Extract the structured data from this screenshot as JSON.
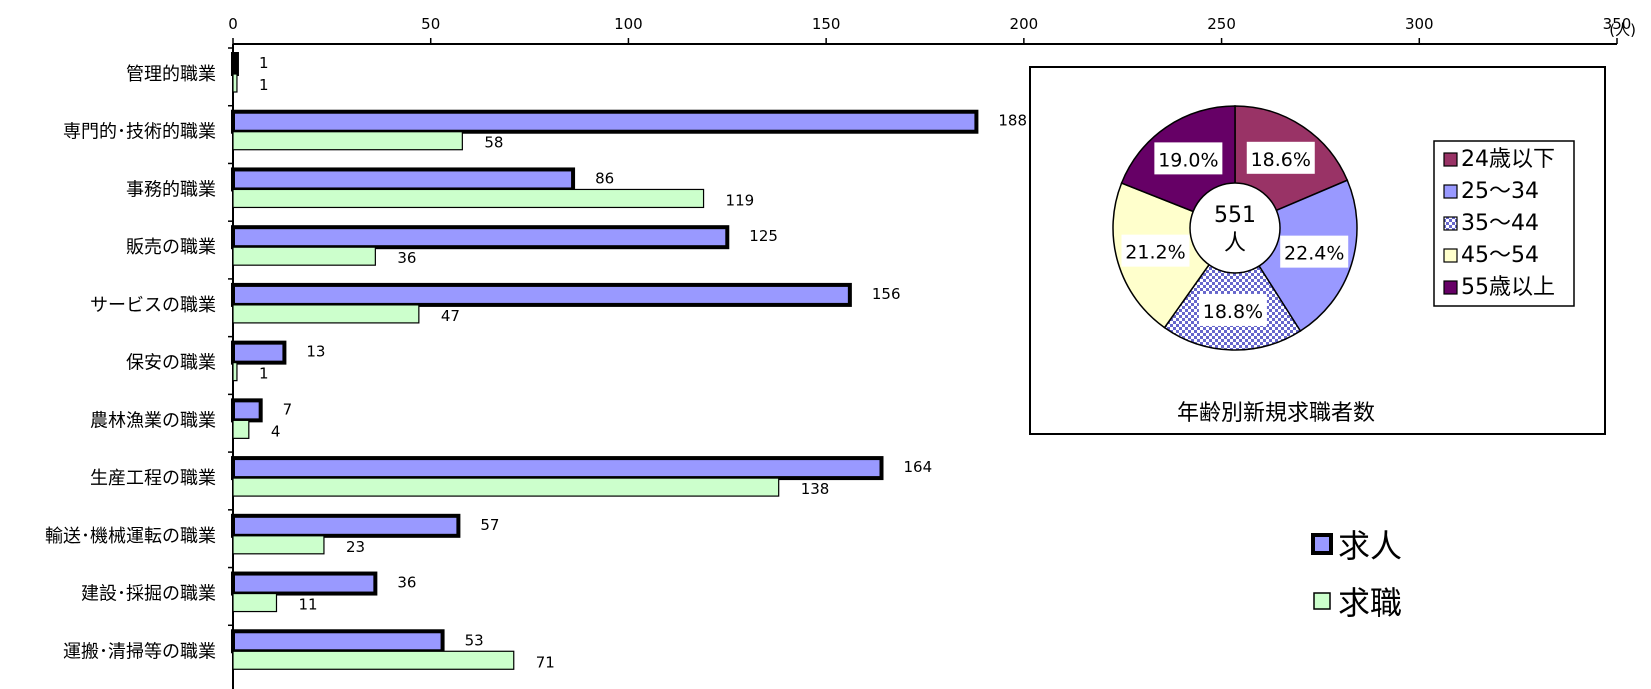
{
  "chart_data": [
    {
      "type": "bar",
      "orientation": "horizontal",
      "unit": "(人)",
      "xlim": [
        0,
        350
      ],
      "x_ticks": [
        "0",
        "50",
        "100",
        "150",
        "200",
        "250",
        "300",
        "350"
      ],
      "categories": [
        "管理的職業",
        "専門的･技術的職業",
        "事務的職業",
        "販売の職業",
        "サービスの職業",
        "保安の職業",
        "農林漁業の職業",
        "生産工程の職業",
        "輸送･機械運転の職業",
        "建設･採掘の職業",
        "運搬･清掃等の職業"
      ],
      "series": [
        {
          "name": "求人",
          "color": "#9999ff",
          "values": [
            1,
            188,
            86,
            125,
            156,
            13,
            7,
            164,
            57,
            36,
            53
          ]
        },
        {
          "name": "求職",
          "color": "#ccffcc",
          "values": [
            1,
            58,
            119,
            36,
            47,
            1,
            4,
            138,
            23,
            11,
            71
          ]
        }
      ],
      "legend_position": "bottom-right"
    },
    {
      "type": "pie",
      "title": "年齢別新規求職者数",
      "center_label": [
        "551",
        "人"
      ],
      "slices": [
        {
          "name": "24歳以下",
          "percent": 18.6,
          "label": "18.6%",
          "color": "#993366"
        },
        {
          "name": "25～34",
          "percent": 22.4,
          "label": "22.4%",
          "color": "#9999ff"
        },
        {
          "name": "35～44",
          "percent": 18.8,
          "label": "18.8%",
          "color": "#9999ff",
          "pattern": "checker"
        },
        {
          "name": "45～54",
          "percent": 21.2,
          "label": "21.2%",
          "color": "#ffffcc"
        },
        {
          "name": "55歳以上",
          "percent": 19.0,
          "label": "19.0%",
          "color": "#660066"
        }
      ],
      "legend_position": "right"
    }
  ]
}
